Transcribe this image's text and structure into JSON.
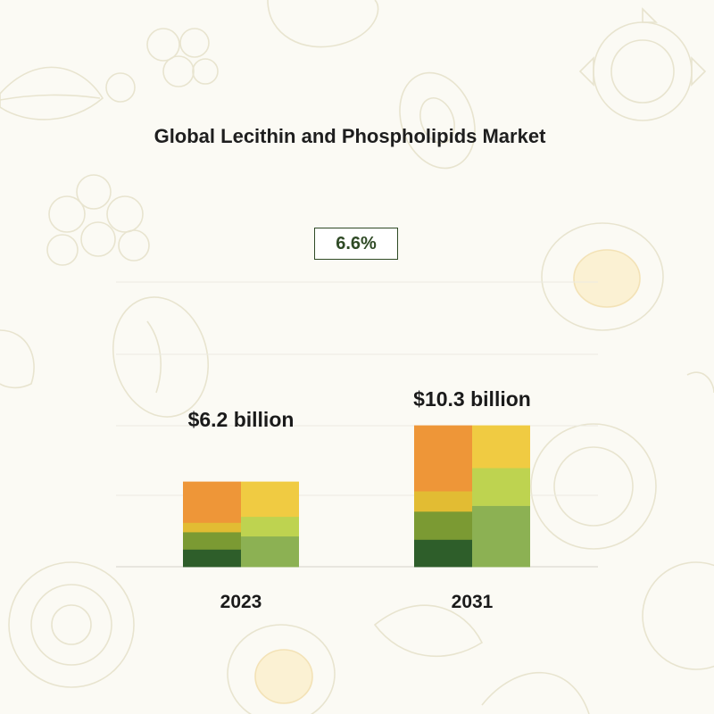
{
  "title": "Global Lecithin and Phospholipids Market",
  "cagr": "6.6%",
  "chart_data": {
    "type": "bar",
    "stacked": true,
    "title": "Global Lecithin and Phospholipids Market",
    "categories": [
      "2023",
      "2031"
    ],
    "totals": [
      6.2,
      10.3
    ],
    "total_labels": [
      "$6.2 billion",
      "$10.3 billion"
    ],
    "unit": "USD billion",
    "grid": true,
    "bars": [
      {
        "year": "2023",
        "columns": [
          {
            "segments": [
              {
                "value": 1.27,
                "color": "#2e5e2a"
              },
              {
                "value": 1.27,
                "color": "#7b9a33"
              },
              {
                "value": 0.68,
                "color": "#e2bc33"
              },
              {
                "value": 2.98,
                "color": "#ee9638"
              }
            ]
          },
          {
            "segments": [
              {
                "value": 2.23,
                "color": "#8cb153"
              },
              {
                "value": 1.43,
                "color": "#bed350"
              },
              {
                "value": 2.54,
                "color": "#f0cb42"
              }
            ]
          }
        ]
      },
      {
        "year": "2031",
        "columns": [
          {
            "segments": [
              {
                "value": 1.99,
                "color": "#2e5e2a"
              },
              {
                "value": 2.05,
                "color": "#7b9a33"
              },
              {
                "value": 1.48,
                "color": "#e2bc33"
              },
              {
                "value": 4.78,
                "color": "#ee9638"
              }
            ]
          },
          {
            "segments": [
              {
                "value": 4.45,
                "color": "#8cb153"
              },
              {
                "value": 2.76,
                "color": "#bed350"
              },
              {
                "value": 3.09,
                "color": "#f0cb42"
              }
            ]
          }
        ]
      }
    ]
  }
}
